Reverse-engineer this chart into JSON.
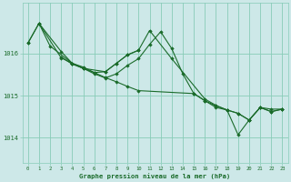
{
  "background_color": "#cde8e8",
  "grid_color": "#88ccb8",
  "line_color": "#1a6b2a",
  "marker_color": "#1a6b2a",
  "xlabel": "Graphe pression niveau de la mer (hPa)",
  "xlabel_color": "#1a6b2a",
  "ylabel_ticks": [
    1014,
    1015,
    1016
  ],
  "xlim": [
    -0.5,
    23.5
  ],
  "ylim": [
    1013.4,
    1017.2
  ],
  "xticks": [
    0,
    1,
    2,
    3,
    4,
    5,
    6,
    7,
    8,
    9,
    10,
    11,
    12,
    13,
    14,
    15,
    16,
    17,
    18,
    19,
    20,
    21,
    22,
    23
  ],
  "series": [
    {
      "x": [
        0,
        1,
        3,
        4,
        5,
        6,
        7,
        8,
        9,
        10,
        15,
        16,
        17,
        18,
        19,
        20,
        21,
        22,
        23
      ],
      "y": [
        1016.25,
        1016.72,
        1015.9,
        1015.77,
        1015.68,
        1015.55,
        1015.43,
        1015.33,
        1015.22,
        1015.12,
        1015.05,
        1014.88,
        1014.76,
        1014.66,
        1014.58,
        1014.42,
        1014.72,
        1014.62,
        1014.68
      ]
    },
    {
      "x": [
        0,
        1,
        3,
        4,
        5,
        6,
        7,
        8,
        9,
        10,
        11,
        12,
        13,
        14,
        15,
        16,
        17,
        18,
        19,
        20,
        21,
        22,
        23
      ],
      "y": [
        1016.25,
        1016.72,
        1016.05,
        1015.77,
        1015.65,
        1015.52,
        1015.42,
        1015.52,
        1015.72,
        1015.88,
        1016.22,
        1016.52,
        1016.12,
        1015.52,
        1015.05,
        1014.88,
        1014.72,
        1014.66,
        1014.58,
        1014.42,
        1014.72,
        1014.62,
        1014.68
      ]
    },
    {
      "x": [
        1,
        2,
        4,
        5,
        7,
        8,
        9,
        10,
        11,
        13,
        16,
        17,
        18,
        19,
        20,
        21,
        22,
        23
      ],
      "y": [
        1016.72,
        1016.18,
        1015.77,
        1015.65,
        1015.57,
        1015.77,
        1015.97,
        1016.08,
        1016.55,
        1015.88,
        1014.92,
        1014.77,
        1014.66,
        1014.07,
        1014.42,
        1014.72,
        1014.68,
        1014.68
      ]
    },
    {
      "x": [
        3,
        4,
        5,
        6,
        7,
        8,
        9,
        10
      ],
      "y": [
        1015.92,
        1015.75,
        1015.65,
        1015.55,
        1015.57,
        1015.77,
        1015.97,
        1016.08
      ]
    }
  ]
}
